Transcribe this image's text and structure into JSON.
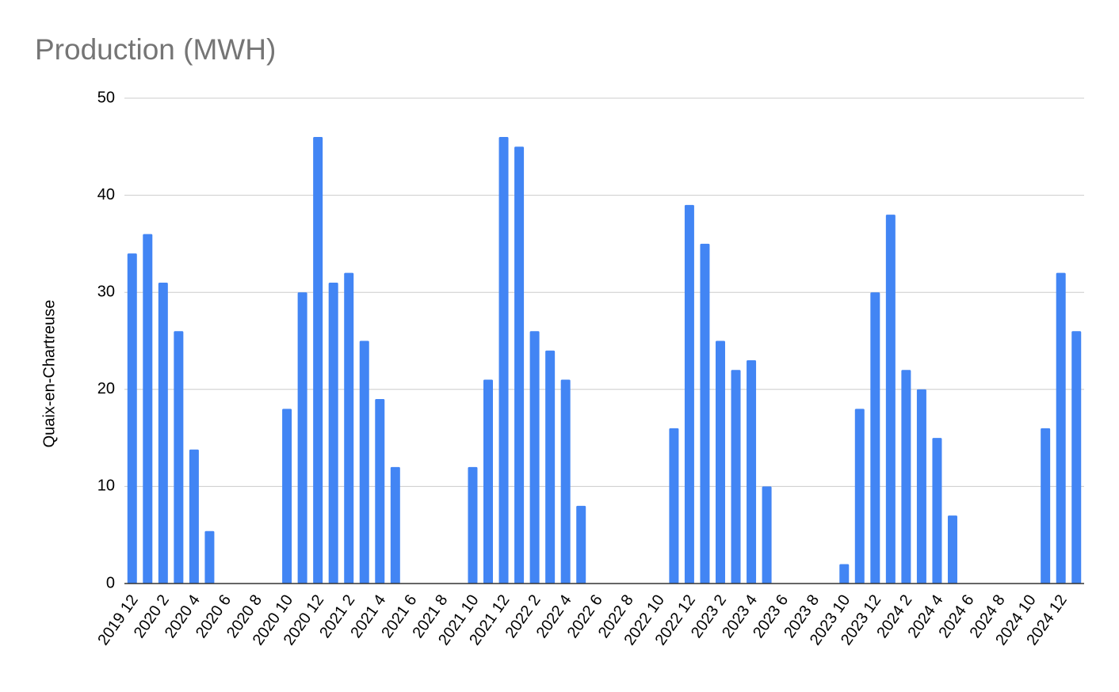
{
  "chart_data": {
    "type": "bar",
    "title": "Production (MWH)",
    "y_label": "Quaix-en-Chartreuse",
    "categories": [
      "2019 12",
      null,
      "2020 2",
      null,
      "2020 4",
      null,
      "2020 6",
      null,
      "2020 8",
      null,
      "2020 10",
      null,
      "2020 12",
      null,
      "2021 2",
      null,
      "2021 4",
      null,
      "2021 6",
      null,
      "2021 8",
      null,
      "2021 10",
      null,
      "2021 12",
      null,
      "2022 2",
      null,
      "2022 4",
      null,
      "2022 6",
      null,
      "2022 8",
      null,
      "2022 10",
      null,
      "2022 12",
      null,
      "2023 2",
      null,
      "2023 4",
      null,
      "2023 6",
      null,
      "2023 8",
      null,
      "2023 10",
      null,
      "2023 12",
      null,
      "2024 2",
      null,
      "2024 4",
      null,
      "2024 6",
      null,
      "2024 8",
      null,
      "2024 10",
      null,
      "2024 12",
      null
    ],
    "values": [
      34,
      36,
      31,
      26,
      13.8,
      5.4,
      0,
      0,
      0,
      0,
      18,
      30,
      46,
      31,
      32,
      25,
      19,
      12,
      0,
      0,
      0,
      0,
      12,
      21,
      46,
      45,
      26,
      24,
      21,
      8,
      0,
      0,
      0,
      0,
      0,
      16,
      39,
      35,
      25,
      22,
      23,
      10,
      0,
      0,
      0,
      0,
      2,
      18,
      30,
      38,
      22,
      20,
      15,
      7,
      0,
      0,
      0,
      0,
      0,
      16,
      32,
      26
    ],
    "color": "#4285f4",
    "ylim": [
      0,
      50
    ],
    "yticks": [
      0,
      10,
      20,
      30,
      40,
      50
    ],
    "grid": true
  }
}
